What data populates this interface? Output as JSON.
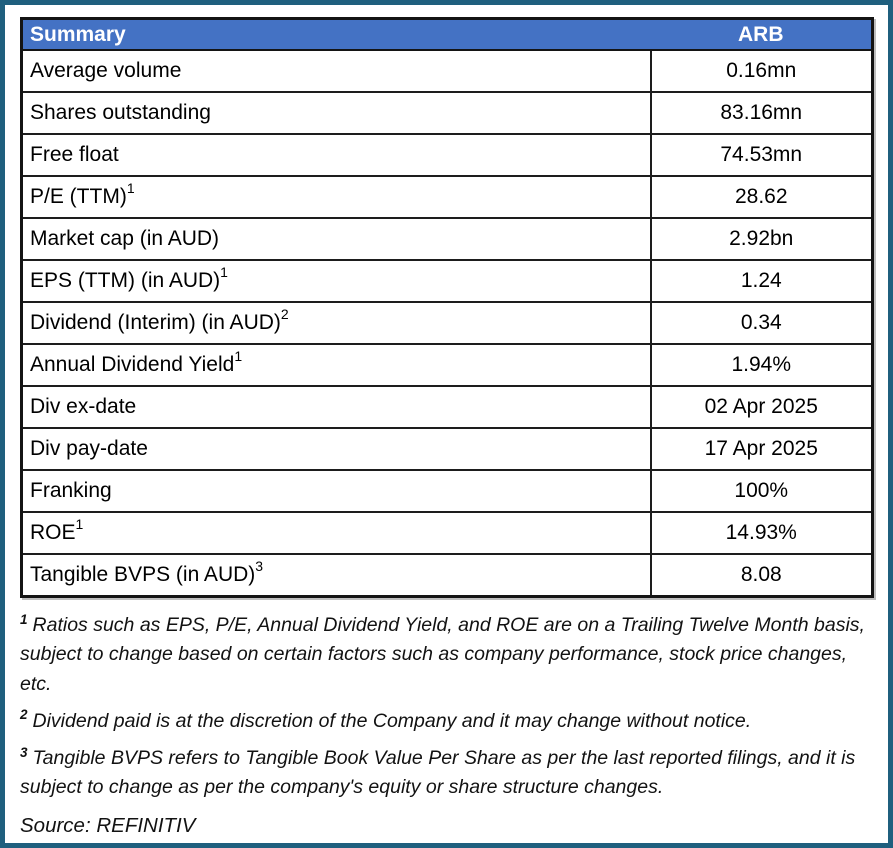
{
  "colors": {
    "header_bg": "#4472C4",
    "header_text": "#FFFFFF",
    "outer_border": "#1F5F7E",
    "table_border": "#141414"
  },
  "table": {
    "header": {
      "label": "Summary",
      "value": "ARB"
    },
    "rows": [
      {
        "label": "Average volume",
        "sup": "",
        "value": "0.16mn"
      },
      {
        "label": "Shares outstanding",
        "sup": "",
        "value": "83.16mn"
      },
      {
        "label": "Free float",
        "sup": "",
        "value": "74.53mn"
      },
      {
        "label": "P/E (TTM)",
        "sup": "1",
        "value": "28.62"
      },
      {
        "label": "Market cap (in AUD)",
        "sup": "",
        "value": "2.92bn"
      },
      {
        "label": "EPS (TTM) (in AUD)",
        "sup": "1",
        "value": "1.24"
      },
      {
        "label": "Dividend (Interim) (in AUD)",
        "sup": "2",
        "value": "0.34"
      },
      {
        "label": "Annual Dividend Yield",
        "sup": "1",
        "value": "1.94%"
      },
      {
        "label": "Div ex-date",
        "sup": "",
        "value": "02 Apr 2025"
      },
      {
        "label": "Div pay-date",
        "sup": "",
        "value": "17 Apr 2025"
      },
      {
        "label": "Franking",
        "sup": "",
        "value": "100%"
      },
      {
        "label": "ROE",
        "sup": "1",
        "value": "14.93%"
      },
      {
        "label": "Tangible BVPS (in AUD)",
        "sup": "3",
        "value": "8.08"
      }
    ]
  },
  "footnotes": [
    {
      "sup": "1",
      "text": "Ratios such as EPS, P/E,  Annual Dividend Yield, and ROE are on a Trailing Twelve Month basis, subject to change based on certain factors such as company performance, stock price changes, etc."
    },
    {
      "sup": "2",
      "text": "Dividend paid is at the discretion of the Company and it may change without notice."
    },
    {
      "sup": "3",
      "text": "Tangible BVPS refers to Tangible Book Value Per Share as per the last reported filings, and it is subject to change as per the company's equity or share structure changes."
    }
  ],
  "source": "Source: REFINITIV"
}
